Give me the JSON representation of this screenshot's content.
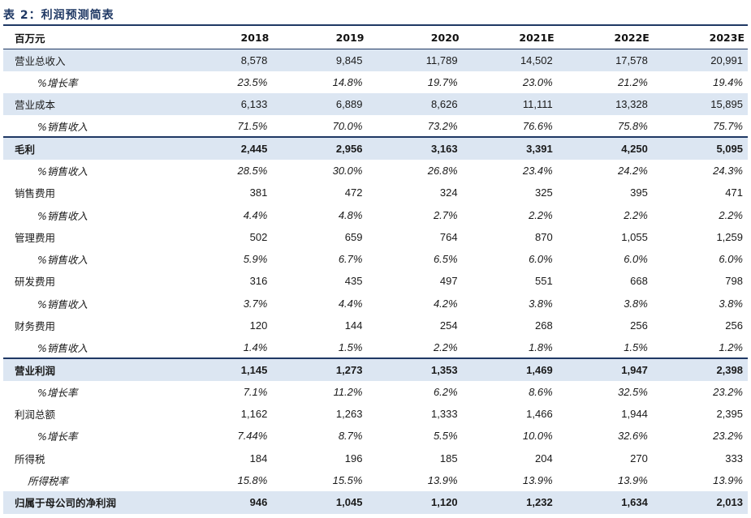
{
  "caption": "表 2：利润预测简表",
  "header": {
    "unit": "百万元",
    "years": [
      "2018",
      "2019",
      "2020",
      "2021E",
      "2022E",
      "2023E"
    ]
  },
  "rows": [
    {
      "label": "营业总收入",
      "values": [
        "8,578",
        "9,845",
        "11,789",
        "14,502",
        "17,578",
        "20,991"
      ]
    },
    {
      "label": "%增长率",
      "values": [
        "23.5%",
        "14.8%",
        "19.7%",
        "23.0%",
        "21.2%",
        "19.4%"
      ]
    },
    {
      "label": "营业成本",
      "values": [
        "6,133",
        "6,889",
        "8,626",
        "11,111",
        "13,328",
        "15,895"
      ]
    },
    {
      "label": "%销售收入",
      "values": [
        "71.5%",
        "70.0%",
        "73.2%",
        "76.6%",
        "75.8%",
        "75.7%"
      ]
    },
    {
      "label": "毛利",
      "values": [
        "2,445",
        "2,956",
        "3,163",
        "3,391",
        "4,250",
        "5,095"
      ]
    },
    {
      "label": "%销售收入",
      "values": [
        "28.5%",
        "30.0%",
        "26.8%",
        "23.4%",
        "24.2%",
        "24.3%"
      ]
    },
    {
      "label": "销售费用",
      "values": [
        "381",
        "472",
        "324",
        "325",
        "395",
        "471"
      ]
    },
    {
      "label": "%销售收入",
      "values": [
        "4.4%",
        "4.8%",
        "2.7%",
        "2.2%",
        "2.2%",
        "2.2%"
      ]
    },
    {
      "label": "管理费用",
      "values": [
        "502",
        "659",
        "764",
        "870",
        "1,055",
        "1,259"
      ]
    },
    {
      "label": "%销售收入",
      "values": [
        "5.9%",
        "6.7%",
        "6.5%",
        "6.0%",
        "6.0%",
        "6.0%"
      ]
    },
    {
      "label": "研发费用",
      "values": [
        "316",
        "435",
        "497",
        "551",
        "668",
        "798"
      ]
    },
    {
      "label": "%销售收入",
      "values": [
        "3.7%",
        "4.4%",
        "4.2%",
        "3.8%",
        "3.8%",
        "3.8%"
      ]
    },
    {
      "label": "财务费用",
      "values": [
        "120",
        "144",
        "254",
        "268",
        "256",
        "256"
      ]
    },
    {
      "label": "%销售收入",
      "values": [
        "1.4%",
        "1.5%",
        "2.2%",
        "1.8%",
        "1.5%",
        "1.2%"
      ]
    },
    {
      "label": "营业利润",
      "values": [
        "1,145",
        "1,273",
        "1,353",
        "1,469",
        "1,947",
        "2,398"
      ]
    },
    {
      "label": "%增长率",
      "values": [
        "7.1%",
        "11.2%",
        "6.2%",
        "8.6%",
        "32.5%",
        "23.2%"
      ]
    },
    {
      "label": "利润总额",
      "values": [
        "1,162",
        "1,263",
        "1,333",
        "1,466",
        "1,944",
        "2,395"
      ]
    },
    {
      "label": "%增长率",
      "values": [
        "7.44%",
        "8.7%",
        "5.5%",
        "10.0%",
        "32.6%",
        "23.2%"
      ]
    },
    {
      "label": "所得税",
      "values": [
        "184",
        "196",
        "185",
        "204",
        "270",
        "333"
      ]
    },
    {
      "label": "所得税率",
      "values": [
        "15.8%",
        "15.5%",
        "13.9%",
        "13.9%",
        "13.9%",
        "13.9%"
      ]
    },
    {
      "label": "归属于母公司的净利润",
      "values": [
        "946",
        "1,045",
        "1,120",
        "1,232",
        "1,634",
        "2,013"
      ]
    }
  ],
  "colors": {
    "accent": "#1f3864",
    "shade": "#dce6f2"
  }
}
